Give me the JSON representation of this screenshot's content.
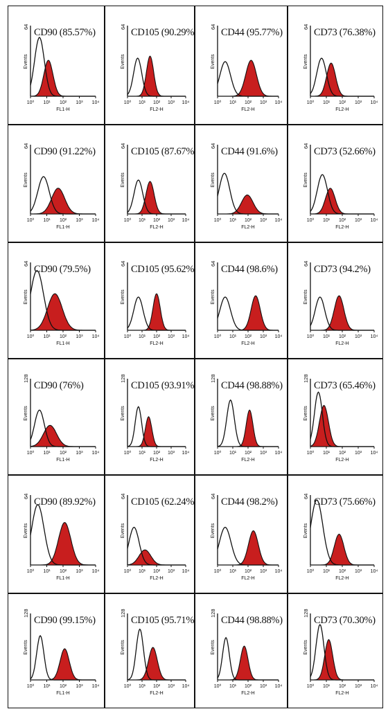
{
  "colors": {
    "fill": "#c81e1e",
    "outline": "#111111",
    "border": "#111111"
  },
  "ylabel": "Events",
  "x_tick_labels": [
    "10⁰",
    "10¹",
    "10²",
    "10³",
    "10⁴"
  ],
  "chart_data": [
    {
      "type": "area",
      "marker": "CD90",
      "label": "CD90 (85.57%)",
      "xlabel": "FL1-H",
      "ymax": "64",
      "xlim": [
        0,
        4
      ],
      "control": {
        "peak_log": 0.55,
        "width": 0.3,
        "height": 0.85
      },
      "stained": {
        "peak_log": 1.1,
        "width": 0.28,
        "height": 0.52
      }
    },
    {
      "type": "area",
      "marker": "CD105",
      "label": "CD105 (90.29%)",
      "xlabel": "FL2-H",
      "ymax": "64",
      "xlim": [
        0,
        4
      ],
      "control": {
        "peak_log": 0.7,
        "width": 0.28,
        "height": 0.55
      },
      "stained": {
        "peak_log": 1.55,
        "width": 0.25,
        "height": 0.58
      }
    },
    {
      "type": "area",
      "marker": "CD44",
      "label": "CD44 (95.77%)",
      "xlabel": "FL2-H",
      "ymax": "64",
      "xlim": [
        0,
        4
      ],
      "control": {
        "peak_log": 0.5,
        "width": 0.35,
        "height": 0.5
      },
      "stained": {
        "peak_log": 2.2,
        "width": 0.35,
        "height": 0.52
      }
    },
    {
      "type": "area",
      "marker": "CD73",
      "label": "CD73 (76.38%)",
      "xlabel": "FL2-H",
      "ymax": "64",
      "xlim": [
        0,
        4
      ],
      "control": {
        "peak_log": 0.7,
        "width": 0.3,
        "height": 0.55
      },
      "stained": {
        "peak_log": 1.3,
        "width": 0.28,
        "height": 0.48
      }
    },
    {
      "type": "area",
      "marker": "CD90",
      "label": "CD90 (91.22%)",
      "xlabel": "FL1-H",
      "ymax": "64",
      "xlim": [
        0,
        4
      ],
      "control": {
        "peak_log": 0.8,
        "width": 0.35,
        "height": 0.55
      },
      "stained": {
        "peak_log": 1.7,
        "width": 0.4,
        "height": 0.38
      }
    },
    {
      "type": "area",
      "marker": "CD105",
      "label": "CD105 (87.67%",
      "xlabel": "FL2-H",
      "ymax": "64",
      "xlim": [
        0,
        4
      ],
      "control": {
        "peak_log": 0.75,
        "width": 0.3,
        "height": 0.5
      },
      "stained": {
        "peak_log": 1.55,
        "width": 0.28,
        "height": 0.48
      }
    },
    {
      "type": "area",
      "marker": "CD44",
      "label": "CD44 (91.6%)",
      "xlabel": "FL2-H",
      "ymax": "64",
      "xlim": [
        0,
        4
      ],
      "control": {
        "peak_log": 0.45,
        "width": 0.35,
        "height": 0.6
      },
      "stained": {
        "peak_log": 1.95,
        "width": 0.38,
        "height": 0.28
      }
    },
    {
      "type": "area",
      "marker": "CD73",
      "label": "CD73 (52.66%)",
      "xlabel": "FL2-H",
      "ymax": "64",
      "xlim": [
        0,
        4
      ],
      "control": {
        "peak_log": 0.75,
        "width": 0.32,
        "height": 0.58
      },
      "stained": {
        "peak_log": 1.25,
        "width": 0.3,
        "height": 0.38
      }
    },
    {
      "type": "area",
      "marker": "CD90",
      "label": "CD90 (79.5%)",
      "xlabel": "FL1-H",
      "ymax": "64",
      "xlim": [
        0,
        4
      ],
      "control": {
        "peak_log": 0.4,
        "width": 0.4,
        "height": 0.9
      },
      "stained": {
        "peak_log": 1.5,
        "width": 0.45,
        "height": 0.55
      }
    },
    {
      "type": "area",
      "marker": "CD105",
      "label": "CD105 (95.62%)",
      "xlabel": "FL2-H",
      "ymax": "64",
      "xlim": [
        0,
        4
      ],
      "control": {
        "peak_log": 0.75,
        "width": 0.32,
        "height": 0.5
      },
      "stained": {
        "peak_log": 2.0,
        "width": 0.25,
        "height": 0.55
      }
    },
    {
      "type": "area",
      "marker": "CD44",
      "label": "CD44 (98.6%)",
      "xlabel": "FL2-H",
      "ymax": "64",
      "xlim": [
        0,
        4
      ],
      "control": {
        "peak_log": 0.5,
        "width": 0.35,
        "height": 0.5
      },
      "stained": {
        "peak_log": 2.5,
        "width": 0.3,
        "height": 0.52
      }
    },
    {
      "type": "area",
      "marker": "CD73",
      "label": "CD73 (94.2%)",
      "xlabel": "FL2-H",
      "ymax": "64",
      "xlim": [
        0,
        4
      ],
      "control": {
        "peak_log": 0.6,
        "width": 0.3,
        "height": 0.5
      },
      "stained": {
        "peak_log": 1.8,
        "width": 0.3,
        "height": 0.52
      }
    },
    {
      "type": "area",
      "marker": "CD90",
      "label": "CD90 (76%)",
      "xlabel": "FL1-H",
      "ymax": "128",
      "xlim": [
        0,
        4
      ],
      "control": {
        "peak_log": 0.55,
        "width": 0.3,
        "height": 0.55
      },
      "stained": {
        "peak_log": 1.2,
        "width": 0.4,
        "height": 0.32
      }
    },
    {
      "type": "area",
      "marker": "CD105",
      "label": "CD105 (93.91%)",
      "xlabel": "FL2-H",
      "ymax": "128",
      "xlim": [
        0,
        4
      ],
      "control": {
        "peak_log": 0.75,
        "width": 0.22,
        "height": 0.6
      },
      "stained": {
        "peak_log": 1.45,
        "width": 0.22,
        "height": 0.45
      }
    },
    {
      "type": "area",
      "marker": "CD44",
      "label": "CD44 (98.88%)",
      "xlabel": "FL2-H",
      "ymax": "128",
      "xlim": [
        0,
        4
      ],
      "control": {
        "peak_log": 0.85,
        "width": 0.25,
        "height": 0.7
      },
      "stained": {
        "peak_log": 2.1,
        "width": 0.22,
        "height": 0.55
      }
    },
    {
      "type": "area",
      "marker": "CD73",
      "label": "CD73 (65.46%)",
      "xlabel": "FL2-H",
      "ymax": "128",
      "xlim": [
        0,
        4
      ],
      "control": {
        "peak_log": 0.5,
        "width": 0.25,
        "height": 0.82
      },
      "stained": {
        "peak_log": 0.85,
        "width": 0.28,
        "height": 0.62
      }
    },
    {
      "type": "area",
      "marker": "CD90",
      "label": "CD90 (89.92%)",
      "xlabel": "FL1-H",
      "ymax": "64",
      "xlim": [
        0,
        4
      ],
      "control": {
        "peak_log": 0.45,
        "width": 0.38,
        "height": 0.88
      },
      "stained": {
        "peak_log": 2.1,
        "width": 0.38,
        "height": 0.62
      }
    },
    {
      "type": "area",
      "marker": "CD105",
      "label": "CD105 (62.24%)",
      "xlabel": "FL2-H",
      "ymax": "64",
      "xlim": [
        0,
        4
      ],
      "control": {
        "peak_log": 0.45,
        "width": 0.35,
        "height": 0.55
      },
      "stained": {
        "peak_log": 1.2,
        "width": 0.4,
        "height": 0.22
      }
    },
    {
      "type": "area",
      "marker": "CD44",
      "label": "CD44 (98.2%)",
      "xlabel": "FL2-H",
      "ymax": "64",
      "xlim": [
        0,
        4
      ],
      "control": {
        "peak_log": 0.5,
        "width": 0.38,
        "height": 0.55
      },
      "stained": {
        "peak_log": 2.35,
        "width": 0.32,
        "height": 0.5
      }
    },
    {
      "type": "area",
      "marker": "CD73",
      "label": "CD73 (75.66%)",
      "xlabel": "FL2-H",
      "ymax": "64",
      "xlim": [
        0,
        4
      ],
      "control": {
        "peak_log": 0.4,
        "width": 0.38,
        "height": 0.95
      },
      "stained": {
        "peak_log": 1.8,
        "width": 0.3,
        "height": 0.45
      }
    },
    {
      "type": "area",
      "marker": "CD90",
      "label": "CD90 (99.15%)",
      "xlabel": "FL1-H",
      "ymax": "128",
      "xlim": [
        0,
        4
      ],
      "control": {
        "peak_log": 0.6,
        "width": 0.22,
        "height": 0.68
      },
      "stained": {
        "peak_log": 2.1,
        "width": 0.28,
        "height": 0.48
      }
    },
    {
      "type": "area",
      "marker": "CD105",
      "label": "CD105 (95.71%)",
      "xlabel": "FL2-H",
      "ymax": "128",
      "xlim": [
        0,
        4
      ],
      "control": {
        "peak_log": 0.85,
        "width": 0.25,
        "height": 0.78
      },
      "stained": {
        "peak_log": 1.75,
        "width": 0.3,
        "height": 0.5
      }
    },
    {
      "type": "area",
      "marker": "CD44",
      "label": "CD44 (98.88%)",
      "xlabel": "FL2-H",
      "ymax": "128",
      "xlim": [
        0,
        4
      ],
      "control": {
        "peak_log": 0.55,
        "width": 0.22,
        "height": 0.65
      },
      "stained": {
        "peak_log": 1.75,
        "width": 0.25,
        "height": 0.52
      }
    },
    {
      "type": "area",
      "marker": "CD73",
      "label": "CD73 (70.30%)",
      "xlabel": "FL2-H",
      "ymax": "128",
      "xlim": [
        0,
        4
      ],
      "control": {
        "peak_log": 0.6,
        "width": 0.25,
        "height": 0.85
      },
      "stained": {
        "peak_log": 1.15,
        "width": 0.25,
        "height": 0.62
      }
    }
  ]
}
